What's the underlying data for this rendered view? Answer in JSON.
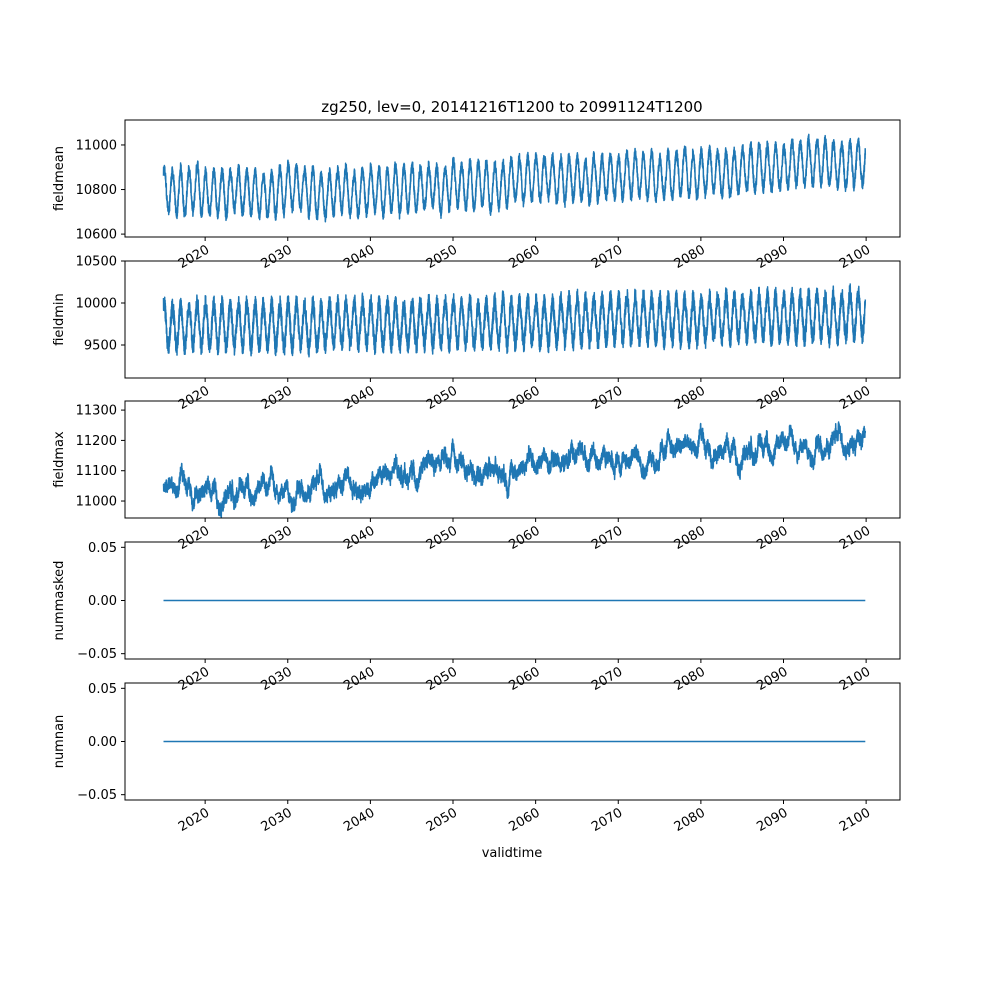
{
  "chart_data": {
    "type": "line",
    "title": "zg250, lev=0, 20141216T1200 to 20991124T1200",
    "xlabel": "validtime",
    "xlim": [
      2010.3,
      2104.1
    ],
    "x_ticks": [
      "2020",
      "2030",
      "2040",
      "2050",
      "2060",
      "2070",
      "2080",
      "2090",
      "2100"
    ],
    "x_tick_values": [
      2020,
      2030,
      2040,
      2050,
      2060,
      2070,
      2080,
      2090,
      2100
    ],
    "x_start": 2014.96,
    "x_end": 2099.9,
    "line_color": "#1f77b4",
    "panels": [
      {
        "ylabel": "fieldmean",
        "ylim": [
          10587,
          11112
        ],
        "y_ticks": [
          "10600",
          "10800",
          "11000"
        ],
        "y_tick_values": [
          10600,
          10800,
          11000
        ],
        "trend_years": [
          2015,
          2025,
          2035,
          2045,
          2055,
          2065,
          2075,
          2085,
          2095,
          2100
        ],
        "trend_values": [
          10790,
          10785,
          10790,
          10805,
          10830,
          10855,
          10870,
          10890,
          10915,
          10925
        ],
        "seasonal_amplitude": 95,
        "noise": 25,
        "slow_variability": 15
      },
      {
        "ylabel": "fieldmin",
        "ylim": [
          9107,
          10500
        ],
        "y_ticks": [
          "9500",
          "10000",
          "10500"
        ],
        "y_tick_values": [
          9500,
          10000,
          10500
        ],
        "trend_years": [
          2015,
          2025,
          2035,
          2045,
          2055,
          2065,
          2075,
          2085,
          2095,
          2100
        ],
        "trend_values": [
          9740,
          9735,
          9745,
          9755,
          9770,
          9790,
          9810,
          9830,
          9850,
          9860
        ],
        "seasonal_amplitude": 250,
        "noise": 110,
        "slow_variability": 20
      },
      {
        "ylabel": "fieldmax",
        "ylim": [
          10944,
          11330
        ],
        "y_ticks": [
          "11000",
          "11100",
          "11200",
          "11300"
        ],
        "y_tick_values": [
          11000,
          11100,
          11200,
          11300
        ],
        "trend_years": [
          2015,
          2025,
          2035,
          2045,
          2055,
          2065,
          2075,
          2085,
          2095,
          2100
        ],
        "trend_values": [
          11040,
          11045,
          11060,
          11090,
          11120,
          11145,
          11160,
          11180,
          11200,
          11215
        ],
        "seasonal_amplitude": 8,
        "noise": 18,
        "slow_variability": 40
      },
      {
        "ylabel": "nummasked",
        "ylim": [
          -0.055,
          0.055
        ],
        "y_ticks": [
          "−0.05",
          "0.00",
          "0.05"
        ],
        "y_tick_values": [
          -0.05,
          0,
          0.05
        ],
        "trend_years": [
          2015,
          2100
        ],
        "trend_values": [
          0,
          0
        ],
        "seasonal_amplitude": 0,
        "noise": 0,
        "slow_variability": 0
      },
      {
        "ylabel": "numnan",
        "ylim": [
          -0.055,
          0.055
        ],
        "y_ticks": [
          "−0.05",
          "0.00",
          "0.05"
        ],
        "y_tick_values": [
          -0.05,
          0,
          0.05
        ],
        "trend_years": [
          2015,
          2100
        ],
        "trend_values": [
          0,
          0
        ],
        "seasonal_amplitude": 0,
        "noise": 0,
        "slow_variability": 0
      }
    ]
  }
}
